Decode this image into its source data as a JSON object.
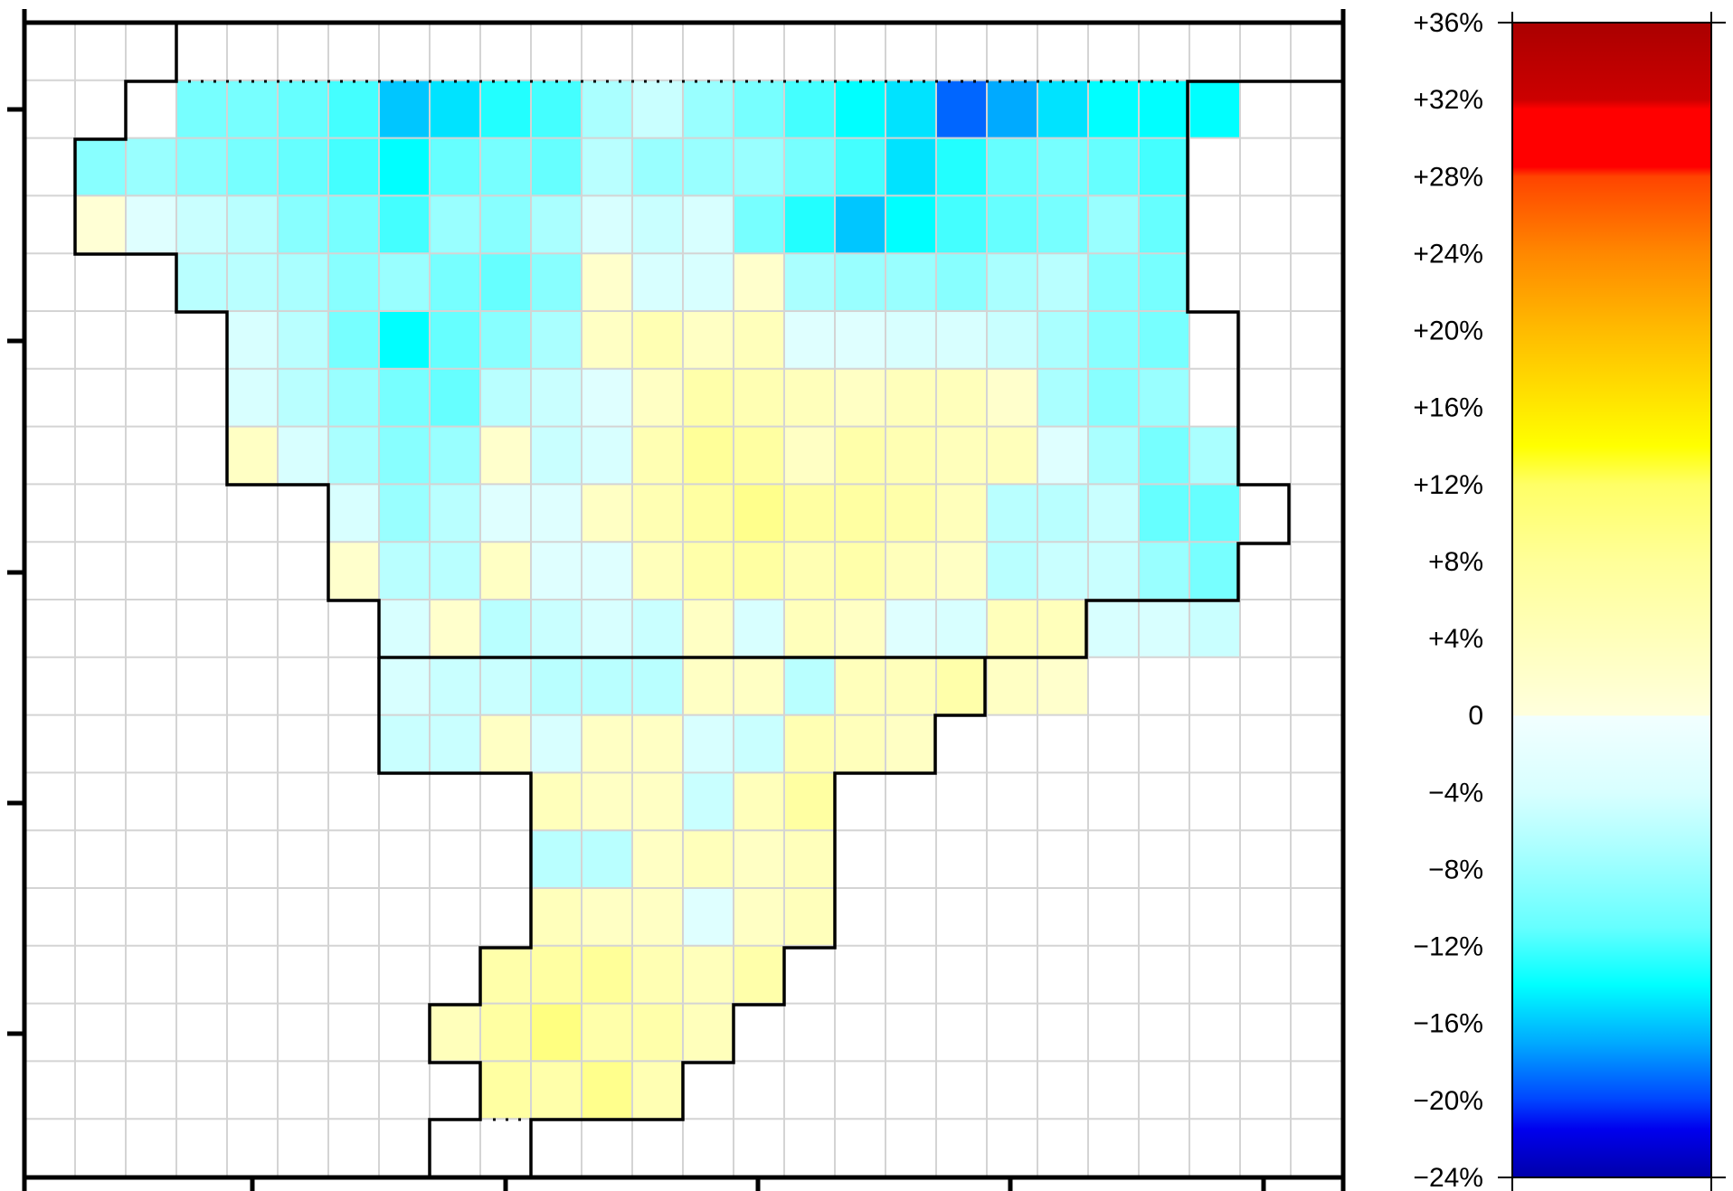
{
  "chart_data": {
    "type": "heatmap",
    "title": "",
    "xlabel": "",
    "ylabel": "",
    "grid": true,
    "colorbar": {
      "position": "right",
      "range": [
        -24,
        36
      ],
      "tick_values": [
        36,
        32,
        28,
        24,
        20,
        16,
        12,
        8,
        4,
        0,
        -4,
        -8,
        -12,
        -16,
        -20,
        -24
      ],
      "tick_labels": [
        "+36%",
        "+32%",
        "+28%",
        "+24%",
        "+20%",
        "+16%",
        "+12%",
        "+8%",
        "+4%",
        "0",
        "−4%",
        "−8%",
        "−12%",
        "−16%",
        "−20%",
        "−24%"
      ],
      "colors": [
        {
          "value": -24,
          "color": "#0000aa"
        },
        {
          "value": -21.5,
          "color": "#0000ee"
        },
        {
          "value": -20,
          "color": "#0044ff"
        },
        {
          "value": -17,
          "color": "#00aaff"
        },
        {
          "value": -14,
          "color": "#00ffff"
        },
        {
          "value": -11,
          "color": "#66ffff"
        },
        {
          "value": -7,
          "color": "#aaffff"
        },
        {
          "value": -4,
          "color": "#d8ffff"
        },
        {
          "value": -0.01,
          "color": "#f2ffff"
        },
        {
          "value": 0,
          "color": "#ffffdd"
        },
        {
          "value": 4,
          "color": "#ffffbb"
        },
        {
          "value": 8,
          "color": "#ffff99"
        },
        {
          "value": 12,
          "color": "#ffff66"
        },
        {
          "value": 14,
          "color": "#ffff00"
        },
        {
          "value": 17,
          "color": "#ffdd00"
        },
        {
          "value": 20,
          "color": "#ffbb00"
        },
        {
          "value": 24,
          "color": "#ff8800"
        },
        {
          "value": 28,
          "color": "#ff4400"
        },
        {
          "value": 28.5,
          "color": "#ff0000"
        },
        {
          "value": 31.5,
          "color": "#ff0000"
        },
        {
          "value": 32,
          "color": "#cc0000"
        },
        {
          "value": 36,
          "color": "#aa0000"
        }
      ]
    },
    "grid_cols": 26,
    "grid_rows": 20,
    "rows": [
      {
        "row": 1,
        "start_col": 3,
        "values": [
          -10,
          -10,
          -11,
          -12,
          -16,
          -15,
          -13,
          -12,
          -7,
          -5,
          -8,
          -10,
          -12,
          -14,
          -15,
          -19,
          -17,
          -15,
          -14,
          -14,
          -14
        ]
      },
      {
        "row": 2,
        "start_col": 1,
        "values": [
          -9,
          -8,
          -9,
          -10,
          -11,
          -12,
          -14,
          -11,
          -10,
          -11,
          -6,
          -8,
          -8,
          -8,
          -10,
          -12,
          -15,
          -13,
          -11,
          -10,
          -11,
          -12
        ]
      },
      {
        "row": 3,
        "start_col": 1,
        "values": [
          1,
          -3,
          -5,
          -6,
          -9,
          -10,
          -12,
          -8,
          -9,
          -7,
          -4,
          -5,
          -4,
          -10,
          -13,
          -16,
          -14,
          -12,
          -11,
          -10,
          -8,
          -11
        ]
      },
      {
        "row": 4,
        "start_col": 3,
        "values": [
          -6,
          -6,
          -7,
          -9,
          -8,
          -10,
          -11,
          -9,
          2,
          -4,
          -4,
          2,
          -7,
          -8,
          -8,
          -9,
          -7,
          -6,
          -9,
          -10
        ]
      },
      {
        "row": 5,
        "start_col": 4,
        "values": [
          -4,
          -6,
          -10,
          -14,
          -11,
          -9,
          -7,
          3,
          5,
          3,
          4,
          -3,
          -3,
          -4,
          -4,
          -5,
          -7,
          -9,
          -10
        ]
      },
      {
        "row": 6,
        "start_col": 4,
        "values": [
          -4,
          -6,
          -8,
          -10,
          -11,
          -6,
          -5,
          -3,
          3,
          6,
          5,
          4,
          3,
          4,
          4,
          2,
          -7,
          -9,
          -8
        ]
      },
      {
        "row": 7,
        "start_col": 4,
        "values": [
          3,
          -4,
          -7,
          -9,
          -8,
          2,
          -5,
          -4,
          5,
          8,
          7,
          3,
          6,
          5,
          4,
          4,
          -3,
          -7,
          -10,
          -7
        ]
      },
      {
        "row": 8,
        "start_col": 6,
        "values": [
          -4,
          -8,
          -6,
          -3,
          -3,
          3,
          5,
          7,
          9,
          7,
          7,
          6,
          4,
          -6,
          -6,
          -5,
          -11,
          -11
        ]
      },
      {
        "row": 9,
        "start_col": 6,
        "values": [
          2,
          -6,
          -6,
          3,
          -3,
          -3,
          4,
          6,
          7,
          5,
          6,
          4,
          3,
          -6,
          -5,
          -5,
          -8,
          -10
        ]
      },
      {
        "row": 10,
        "start_col": 7,
        "values": [
          -4,
          2,
          -6,
          -5,
          -4,
          -5,
          3,
          -4,
          4,
          3,
          -3,
          -4,
          4,
          4,
          -4,
          -4,
          -5
        ]
      },
      {
        "row": 11,
        "start_col": 7,
        "values": [
          -4,
          -5,
          -5,
          -6,
          -6,
          -6,
          3,
          3,
          -6,
          4,
          4,
          6,
          3,
          2
        ]
      },
      {
        "row": 12,
        "start_col": 7,
        "values": [
          -5,
          -5,
          3,
          -4,
          3,
          3,
          -4,
          -5,
          5,
          4,
          3
        ]
      },
      {
        "row": 13,
        "start_col": 10,
        "values": [
          4,
          3,
          3,
          -5,
          4,
          7
        ]
      },
      {
        "row": 14,
        "start_col": 10,
        "values": [
          -6,
          -6,
          3,
          4,
          3,
          4
        ]
      },
      {
        "row": 15,
        "start_col": 10,
        "values": [
          4,
          3,
          3,
          -3,
          3,
          4
        ]
      },
      {
        "row": 16,
        "start_col": 9,
        "values": [
          6,
          7,
          8,
          5,
          4,
          6
        ]
      },
      {
        "row": 17,
        "start_col": 8,
        "values": [
          4,
          7,
          10,
          6,
          6,
          4
        ]
      },
      {
        "row": 18,
        "start_col": 9,
        "values": [
          7,
          6,
          9,
          5
        ]
      }
    ]
  }
}
